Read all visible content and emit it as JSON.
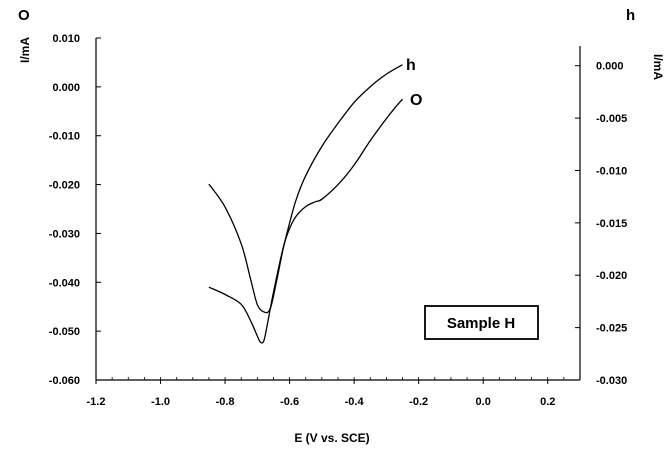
{
  "chart_data": {
    "type": "line",
    "xlabel": "E (V vs. SCE)",
    "ylabel_left": "I/mA",
    "ylabel_right": "I/mA",
    "left_axis_series": "O",
    "right_axis_series": "h",
    "xlim": [
      -1.2,
      0.3
    ],
    "ylim_left": [
      -0.06,
      0.01
    ],
    "ylim_right": [
      -0.03,
      0.0015
    ],
    "x_ticks": [
      "-1.2",
      "-1.0",
      "-0.8",
      "-0.6",
      "-0.4",
      "-0.2",
      "0.0",
      "0.2"
    ],
    "y_ticks_left": [
      "0.010",
      "0.000",
      "-0.010",
      "-0.020",
      "-0.030",
      "-0.040",
      "-0.050",
      "-0.060"
    ],
    "y_ticks_right": [
      "0.000",
      "-0.005",
      "-0.010",
      "-0.015",
      "-0.020",
      "-0.025",
      "-0.030"
    ],
    "annotation": "Sample H",
    "grid": false,
    "series": [
      {
        "name": "O",
        "axis": "left",
        "x": [
          -0.85,
          -0.8,
          -0.75,
          -0.72,
          -0.7,
          -0.69,
          -0.68,
          -0.67,
          -0.65,
          -0.62,
          -0.6,
          -0.58,
          -0.55,
          -0.52,
          -0.5,
          -0.45,
          -0.4,
          -0.35,
          -0.3,
          -0.27,
          -0.25
        ],
        "y": [
          -0.041,
          -0.0425,
          -0.0445,
          -0.048,
          -0.051,
          -0.0523,
          -0.052,
          -0.049,
          -0.042,
          -0.033,
          -0.029,
          -0.0265,
          -0.0245,
          -0.0235,
          -0.023,
          -0.02,
          -0.016,
          -0.011,
          -0.0065,
          -0.004,
          -0.0025
        ]
      },
      {
        "name": "h",
        "axis": "right",
        "x": [
          -0.85,
          -0.8,
          -0.75,
          -0.72,
          -0.7,
          -0.68,
          -0.66,
          -0.64,
          -0.62,
          -0.6,
          -0.58,
          -0.55,
          -0.5,
          -0.45,
          -0.4,
          -0.35,
          -0.3,
          -0.25
        ],
        "y": [
          -0.0113,
          -0.0135,
          -0.017,
          -0.0205,
          -0.0228,
          -0.0235,
          -0.0232,
          -0.0205,
          -0.0175,
          -0.015,
          -0.0128,
          -0.0105,
          -0.0077,
          -0.0055,
          -0.0035,
          -0.002,
          -0.0008,
          0.0001
        ]
      }
    ]
  }
}
